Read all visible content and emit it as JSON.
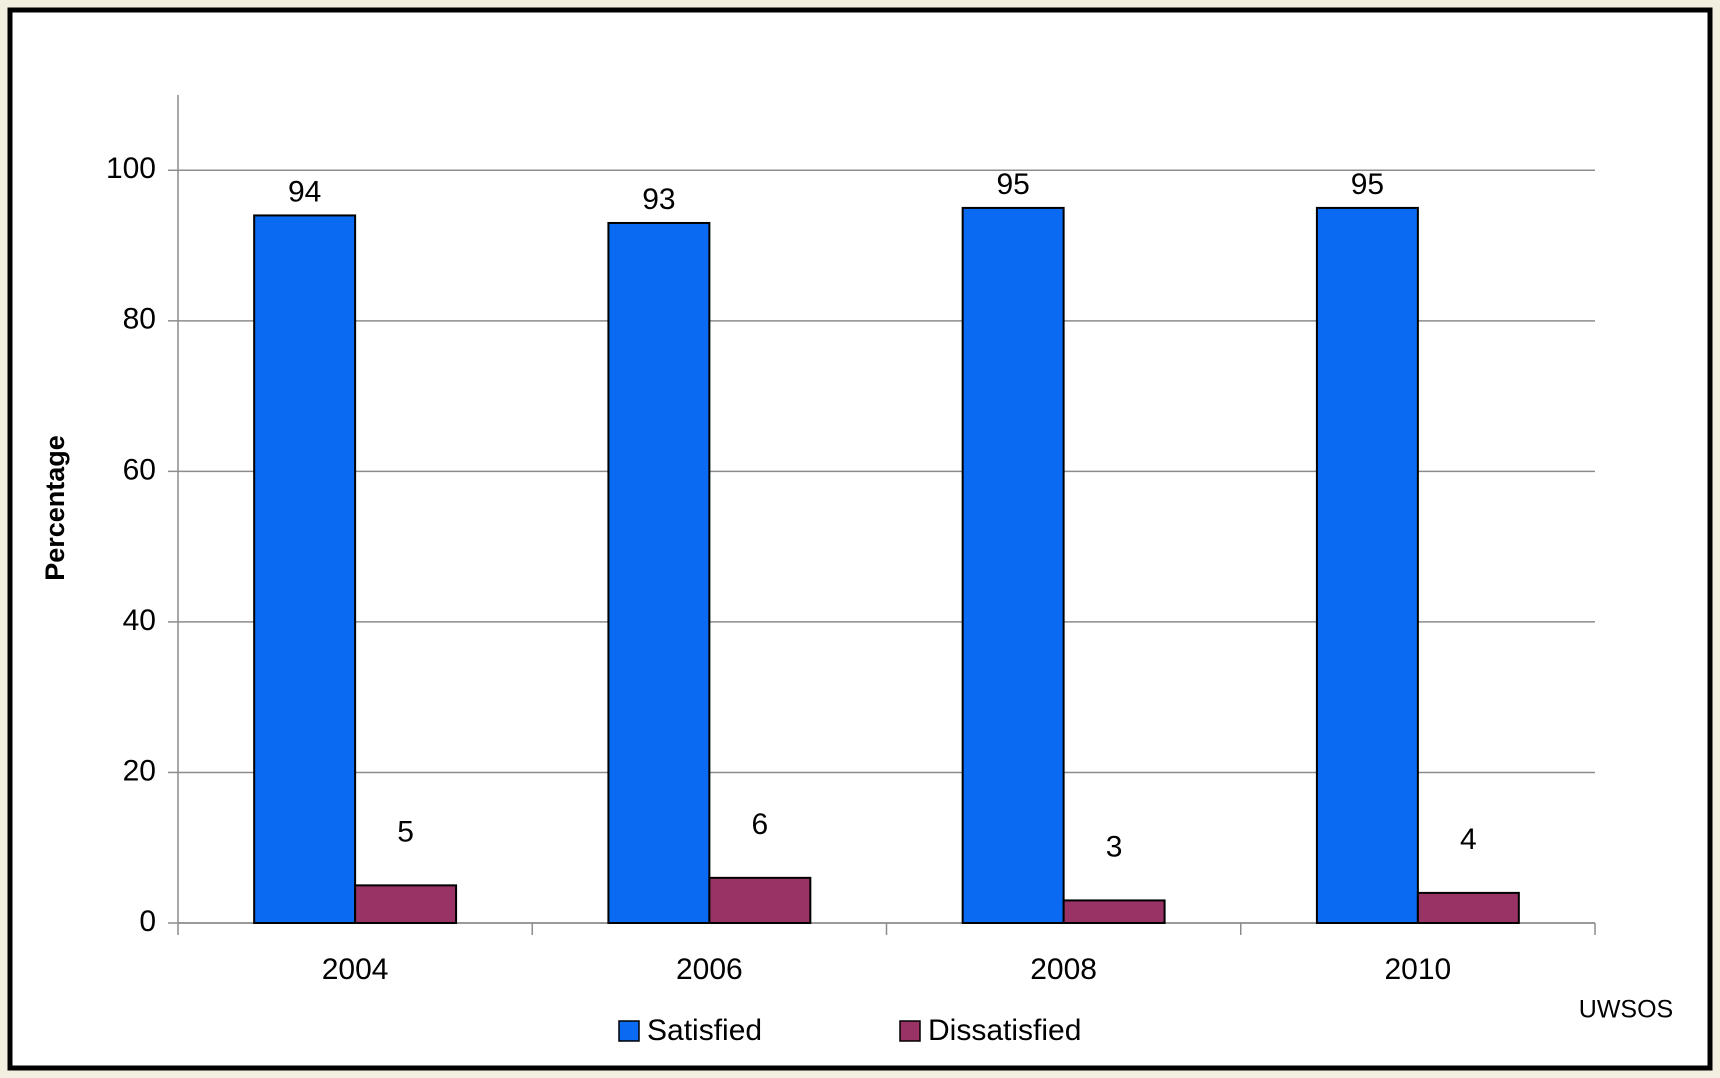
{
  "chart_data": {
    "type": "bar",
    "y_label": "Percentage",
    "source": "UWSOS",
    "categories": [
      "2004",
      "2006",
      "2008",
      "2010"
    ],
    "series": [
      {
        "name": "Satisfied",
        "color": "#0a6af2",
        "values": [
          94,
          93,
          95,
          95
        ]
      },
      {
        "name": "Dissatisfied",
        "color": "#993366",
        "values": [
          5,
          6,
          3,
          4
        ]
      }
    ],
    "ylim": [
      0,
      110
    ],
    "yticks": [
      0,
      20,
      40,
      60,
      80,
      100
    ],
    "grid": true,
    "legend": "bottom"
  }
}
